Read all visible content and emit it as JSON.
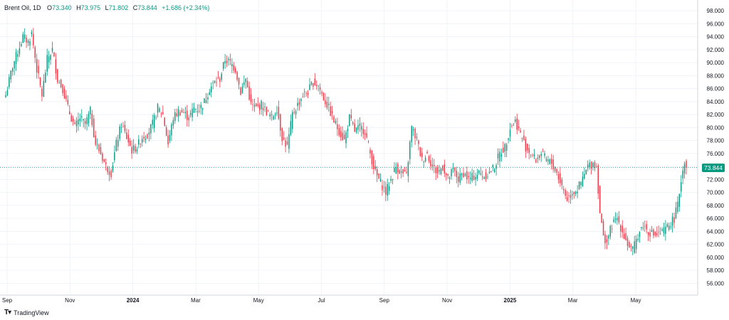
{
  "legend": {
    "symbol": "Brent Oil, 1D",
    "open_label": "O",
    "open": "73.340",
    "high_label": "H",
    "high": "73.975",
    "low_label": "L",
    "low": "71.802",
    "close_label": "C",
    "close": "73.844",
    "change": "+1.686 (+2.34%)"
  },
  "price_tag": "73.844",
  "brand": {
    "name": "TradingView"
  },
  "colors": {
    "up": "#089981",
    "down": "#f23645",
    "grid": "#f0f3fa",
    "axis_text": "#131722"
  },
  "chart_data": {
    "type": "candlestick",
    "title": "Brent Oil, 1D",
    "ylim": [
      54.5,
      99
    ],
    "yticks": [
      "56.000",
      "58.000",
      "60.000",
      "62.000",
      "64.000",
      "66.000",
      "68.000",
      "70.000",
      "72.000",
      "74.000",
      "76.000",
      "78.000",
      "80.000",
      "82.000",
      "84.000",
      "86.000",
      "88.000",
      "90.000",
      "92.000",
      "94.000",
      "96.000",
      "98.000"
    ],
    "xticks": [
      {
        "label": "Sep",
        "bold": false
      },
      {
        "label": "Nov",
        "bold": false
      },
      {
        "label": "2024",
        "bold": true
      },
      {
        "label": "Mar",
        "bold": false
      },
      {
        "label": "May",
        "bold": false
      },
      {
        "label": "Jul",
        "bold": false
      },
      {
        "label": "Sep",
        "bold": false
      },
      {
        "label": "Nov",
        "bold": false
      },
      {
        "label": "2025",
        "bold": true
      },
      {
        "label": "Mar",
        "bold": false
      },
      {
        "label": "May",
        "bold": false
      }
    ],
    "last_price": 73.844,
    "close_path": [
      [
        0,
        85.0
      ],
      [
        4,
        89.5
      ],
      [
        8,
        92.5
      ],
      [
        10,
        94.0
      ],
      [
        13,
        93.2
      ],
      [
        15,
        94.5
      ],
      [
        18,
        89.0
      ],
      [
        21,
        85.0
      ],
      [
        24,
        90.5
      ],
      [
        27,
        92.0
      ],
      [
        30,
        87.5
      ],
      [
        33,
        86.0
      ],
      [
        36,
        83.0
      ],
      [
        40,
        80.0
      ],
      [
        43,
        81.5
      ],
      [
        46,
        80.5
      ],
      [
        49,
        82.5
      ],
      [
        52,
        77.5
      ],
      [
        55,
        76.0
      ],
      [
        58,
        74.0
      ],
      [
        61,
        73.0
      ],
      [
        64,
        77.5
      ],
      [
        67,
        80.5
      ],
      [
        70,
        78.5
      ],
      [
        73,
        76.5
      ],
      [
        76,
        77.0
      ],
      [
        79,
        78.5
      ],
      [
        82,
        79.0
      ],
      [
        85,
        80.5
      ],
      [
        88,
        83.0
      ],
      [
        91,
        82.0
      ],
      [
        94,
        77.5
      ],
      [
        97,
        81.5
      ],
      [
        100,
        82.5
      ],
      [
        103,
        82.3
      ],
      [
        106,
        81.5
      ],
      [
        109,
        83.0
      ],
      [
        112,
        82.8
      ],
      [
        115,
        84.0
      ],
      [
        118,
        86.0
      ],
      [
        121,
        87.0
      ],
      [
        124,
        87.5
      ],
      [
        127,
        90.5
      ],
      [
        130,
        90.0
      ],
      [
        133,
        89.0
      ],
      [
        136,
        85.5
      ],
      [
        139,
        87.5
      ],
      [
        142,
        83.5
      ],
      [
        145,
        83.0
      ],
      [
        148,
        83.5
      ],
      [
        151,
        82.5
      ],
      [
        154,
        81.5
      ],
      [
        157,
        83.0
      ],
      [
        160,
        78.5
      ],
      [
        163,
        77.0
      ],
      [
        166,
        82.0
      ],
      [
        169,
        83.5
      ],
      [
        172,
        85.0
      ],
      [
        175,
        85.5
      ],
      [
        178,
        87.0
      ],
      [
        181,
        86.5
      ],
      [
        184,
        84.5
      ],
      [
        187,
        83.0
      ],
      [
        190,
        81.0
      ],
      [
        193,
        79.5
      ],
      [
        196,
        78.0
      ],
      [
        199,
        81.5
      ],
      [
        202,
        79.5
      ],
      [
        205,
        80.0
      ],
      [
        208,
        79.5
      ],
      [
        211,
        76.0
      ],
      [
        214,
        73.0
      ],
      [
        217,
        71.5
      ],
      [
        220,
        70.0
      ],
      [
        223,
        72.0
      ],
      [
        226,
        74.0
      ],
      [
        229,
        73.0
      ],
      [
        232,
        72.5
      ],
      [
        235,
        80.0
      ],
      [
        238,
        78.0
      ],
      [
        241,
        75.0
      ],
      [
        244,
        76.0
      ],
      [
        247,
        74.0
      ],
      [
        250,
        73.0
      ],
      [
        253,
        74.0
      ],
      [
        256,
        72.0
      ],
      [
        259,
        73.5
      ],
      [
        262,
        72.0
      ],
      [
        265,
        73.0
      ],
      [
        268,
        72.0
      ],
      [
        271,
        72.5
      ],
      [
        274,
        73.0
      ],
      [
        277,
        72.5
      ],
      [
        280,
        73.0
      ],
      [
        283,
        74.0
      ],
      [
        286,
        76.0
      ],
      [
        289,
        77.0
      ],
      [
        292,
        80.0
      ],
      [
        295,
        81.0
      ],
      [
        298,
        79.0
      ],
      [
        301,
        77.0
      ],
      [
        304,
        76.0
      ],
      [
        307,
        75.0
      ],
      [
        310,
        76.0
      ],
      [
        313,
        75.0
      ],
      [
        316,
        74.5
      ],
      [
        319,
        73.0
      ],
      [
        322,
        71.0
      ],
      [
        325,
        69.0
      ],
      [
        328,
        70.0
      ],
      [
        331,
        70.5
      ],
      [
        334,
        72.0
      ],
      [
        337,
        74.0
      ],
      [
        340,
        74.5
      ],
      [
        342,
        74.0
      ],
      [
        344,
        67.0
      ],
      [
        346,
        63.0
      ],
      [
        348,
        62.5
      ],
      [
        351,
        65.0
      ],
      [
        354,
        66.0
      ],
      [
        357,
        64.0
      ],
      [
        360,
        62.0
      ],
      [
        363,
        61.0
      ],
      [
        366,
        63.5
      ],
      [
        369,
        65.0
      ],
      [
        372,
        64.0
      ],
      [
        375,
        63.5
      ],
      [
        378,
        63.5
      ],
      [
        381,
        64.0
      ],
      [
        384,
        65.0
      ],
      [
        387,
        66.0
      ],
      [
        389,
        68.0
      ],
      [
        391,
        72.0
      ],
      [
        393,
        75.0
      ],
      [
        394,
        73.8
      ]
    ]
  }
}
